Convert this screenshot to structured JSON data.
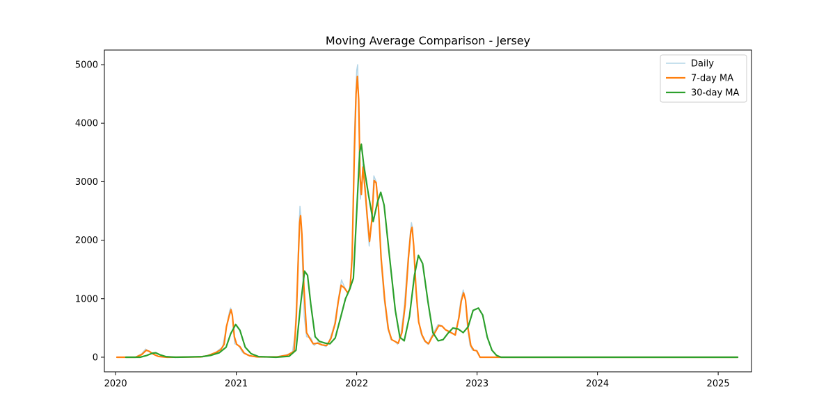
{
  "chart_data": {
    "type": "line",
    "title": "Moving Average Comparison - Jersey",
    "xlabel": "",
    "ylabel": "",
    "x_range": [
      "2019-11-28",
      "2025-04-12"
    ],
    "ylim": [
      -250,
      5250
    ],
    "x_ticks": [
      {
        "date": "2020-01-01",
        "label": "2020"
      },
      {
        "date": "2021-01-01",
        "label": "2021"
      },
      {
        "date": "2022-01-01",
        "label": "2022"
      },
      {
        "date": "2023-01-01",
        "label": "2023"
      },
      {
        "date": "2024-01-01",
        "label": "2024"
      },
      {
        "date": "2025-01-01",
        "label": "2025"
      }
    ],
    "y_ticks": [
      {
        "value": 0,
        "label": "0"
      },
      {
        "value": 1000,
        "label": "1000"
      },
      {
        "value": 2000,
        "label": "2000"
      },
      {
        "value": 3000,
        "label": "3000"
      },
      {
        "value": 4000,
        "label": "4000"
      },
      {
        "value": 5000,
        "label": "5000"
      }
    ],
    "grid": false,
    "legend": "upper-right",
    "series": [
      {
        "name": "Daily",
        "color": "#a6cee3",
        "points": [
          [
            "2020-01-05",
            0
          ],
          [
            "2020-03-01",
            0
          ],
          [
            "2020-03-20",
            60
          ],
          [
            "2020-04-01",
            140
          ],
          [
            "2020-04-08",
            110
          ],
          [
            "2020-04-22",
            60
          ],
          [
            "2020-05-08",
            15
          ],
          [
            "2020-06-01",
            0
          ],
          [
            "2020-09-15",
            5
          ],
          [
            "2020-10-05",
            30
          ],
          [
            "2020-10-20",
            60
          ],
          [
            "2020-11-01",
            90
          ],
          [
            "2020-11-12",
            140
          ],
          [
            "2020-11-20",
            160
          ],
          [
            "2020-11-28",
            400
          ],
          [
            "2020-12-05",
            600
          ],
          [
            "2020-12-12",
            800
          ],
          [
            "2020-12-15",
            840
          ],
          [
            "2020-12-20",
            720
          ],
          [
            "2020-12-27",
            230
          ],
          [
            "2021-01-08",
            200
          ],
          [
            "2021-01-20",
            80
          ],
          [
            "2021-02-05",
            30
          ],
          [
            "2021-03-01",
            5
          ],
          [
            "2021-05-01",
            5
          ],
          [
            "2021-06-01",
            40
          ],
          [
            "2021-06-20",
            80
          ],
          [
            "2021-06-28",
            400
          ],
          [
            "2021-07-05",
            1300
          ],
          [
            "2021-07-10",
            2200
          ],
          [
            "2021-07-13",
            2580
          ],
          [
            "2021-07-16",
            2380
          ],
          [
            "2021-07-20",
            1700
          ],
          [
            "2021-07-26",
            700
          ],
          [
            "2021-08-02",
            350
          ],
          [
            "2021-08-15",
            330
          ],
          [
            "2021-08-25",
            200
          ],
          [
            "2021-09-05",
            260
          ],
          [
            "2021-09-15",
            220
          ],
          [
            "2021-09-30",
            180
          ],
          [
            "2021-10-10",
            280
          ],
          [
            "2021-10-25",
            550
          ],
          [
            "2021-11-01",
            800
          ],
          [
            "2021-11-08",
            1050
          ],
          [
            "2021-11-16",
            1320
          ],
          [
            "2021-11-25",
            1200
          ],
          [
            "2021-12-05",
            1080
          ],
          [
            "2021-12-12",
            1200
          ],
          [
            "2021-12-18",
            1800
          ],
          [
            "2021-12-24",
            3600
          ],
          [
            "2021-12-28",
            4300
          ],
          [
            "2022-01-01",
            4900
          ],
          [
            "2022-01-04",
            5000
          ],
          [
            "2022-01-08",
            4100
          ],
          [
            "2022-01-12",
            2700
          ],
          [
            "2022-01-16",
            2900
          ],
          [
            "2022-01-20",
            3300
          ],
          [
            "2022-01-25",
            2900
          ],
          [
            "2022-02-01",
            2400
          ],
          [
            "2022-02-08",
            1900
          ],
          [
            "2022-02-15",
            2300
          ],
          [
            "2022-02-22",
            3100
          ],
          [
            "2022-03-01",
            3000
          ],
          [
            "2022-03-08",
            2600
          ],
          [
            "2022-03-15",
            1700
          ],
          [
            "2022-03-25",
            1000
          ],
          [
            "2022-04-05",
            500
          ],
          [
            "2022-04-15",
            300
          ],
          [
            "2022-04-25",
            280
          ],
          [
            "2022-05-05",
            220
          ],
          [
            "2022-05-15",
            400
          ],
          [
            "2022-05-25",
            850
          ],
          [
            "2022-06-05",
            1650
          ],
          [
            "2022-06-12",
            2100
          ],
          [
            "2022-06-16",
            2300
          ],
          [
            "2022-06-20",
            2180
          ],
          [
            "2022-06-26",
            1500
          ],
          [
            "2022-07-05",
            700
          ],
          [
            "2022-07-15",
            400
          ],
          [
            "2022-07-25",
            280
          ],
          [
            "2022-08-05",
            220
          ],
          [
            "2022-08-15",
            350
          ],
          [
            "2022-08-25",
            450
          ],
          [
            "2022-09-05",
            560
          ],
          [
            "2022-09-15",
            540
          ],
          [
            "2022-09-25",
            480
          ],
          [
            "2022-10-05",
            450
          ],
          [
            "2022-10-15",
            420
          ],
          [
            "2022-10-25",
            380
          ],
          [
            "2022-11-05",
            650
          ],
          [
            "2022-11-12",
            950
          ],
          [
            "2022-11-20",
            1150
          ],
          [
            "2022-11-26",
            1000
          ],
          [
            "2022-12-03",
            500
          ],
          [
            "2022-12-10",
            220
          ],
          [
            "2022-12-18",
            120
          ],
          [
            "2022-12-28",
            120
          ],
          [
            "2023-01-10",
            0
          ],
          [
            "2023-03-01",
            0
          ],
          [
            "2025-03-01",
            0
          ]
        ]
      },
      {
        "name": "7-day MA",
        "color": "#ff7f0e",
        "points": [
          [
            "2020-01-05",
            0
          ],
          [
            "2020-03-01",
            0
          ],
          [
            "2020-03-20",
            45
          ],
          [
            "2020-04-03",
            120
          ],
          [
            "2020-04-12",
            100
          ],
          [
            "2020-04-25",
            50
          ],
          [
            "2020-05-10",
            12
          ],
          [
            "2020-06-05",
            0
          ],
          [
            "2020-09-15",
            5
          ],
          [
            "2020-10-05",
            25
          ],
          [
            "2020-10-20",
            55
          ],
          [
            "2020-11-02",
            85
          ],
          [
            "2020-11-15",
            130
          ],
          [
            "2020-11-25",
            220
          ],
          [
            "2020-12-02",
            520
          ],
          [
            "2020-12-10",
            700
          ],
          [
            "2020-12-16",
            810
          ],
          [
            "2020-12-20",
            720
          ],
          [
            "2020-12-26",
            350
          ],
          [
            "2021-01-02",
            220
          ],
          [
            "2021-01-12",
            180
          ],
          [
            "2021-01-25",
            70
          ],
          [
            "2021-02-10",
            25
          ],
          [
            "2021-03-05",
            5
          ],
          [
            "2021-05-05",
            5
          ],
          [
            "2021-06-05",
            35
          ],
          [
            "2021-06-25",
            100
          ],
          [
            "2021-07-02",
            700
          ],
          [
            "2021-07-08",
            1700
          ],
          [
            "2021-07-12",
            2300
          ],
          [
            "2021-07-15",
            2420
          ],
          [
            "2021-07-19",
            2100
          ],
          [
            "2021-07-25",
            1200
          ],
          [
            "2021-08-02",
            420
          ],
          [
            "2021-08-12",
            320
          ],
          [
            "2021-08-22",
            230
          ],
          [
            "2021-09-05",
            240
          ],
          [
            "2021-09-18",
            210
          ],
          [
            "2021-10-02",
            200
          ],
          [
            "2021-10-15",
            320
          ],
          [
            "2021-10-28",
            580
          ],
          [
            "2021-11-06",
            950
          ],
          [
            "2021-11-15",
            1230
          ],
          [
            "2021-11-25",
            1180
          ],
          [
            "2021-12-05",
            1100
          ],
          [
            "2021-12-12",
            1180
          ],
          [
            "2021-12-18",
            1700
          ],
          [
            "2021-12-25",
            3500
          ],
          [
            "2021-12-30",
            4500
          ],
          [
            "2022-01-03",
            4800
          ],
          [
            "2022-01-07",
            4400
          ],
          [
            "2022-01-11",
            3100
          ],
          [
            "2022-01-15",
            2780
          ],
          [
            "2022-01-20",
            3250
          ],
          [
            "2022-01-26",
            2900
          ],
          [
            "2022-02-02",
            2400
          ],
          [
            "2022-02-09",
            1980
          ],
          [
            "2022-02-16",
            2350
          ],
          [
            "2022-02-23",
            3020
          ],
          [
            "2022-03-01",
            2980
          ],
          [
            "2022-03-08",
            2550
          ],
          [
            "2022-03-16",
            1700
          ],
          [
            "2022-03-27",
            980
          ],
          [
            "2022-04-07",
            480
          ],
          [
            "2022-04-17",
            300
          ],
          [
            "2022-04-27",
            270
          ],
          [
            "2022-05-07",
            240
          ],
          [
            "2022-05-18",
            420
          ],
          [
            "2022-05-28",
            900
          ],
          [
            "2022-06-07",
            1700
          ],
          [
            "2022-06-14",
            2150
          ],
          [
            "2022-06-18",
            2220
          ],
          [
            "2022-06-23",
            1900
          ],
          [
            "2022-06-30",
            1150
          ],
          [
            "2022-07-08",
            600
          ],
          [
            "2022-07-18",
            380
          ],
          [
            "2022-07-28",
            270
          ],
          [
            "2022-08-07",
            230
          ],
          [
            "2022-08-17",
            340
          ],
          [
            "2022-08-27",
            430
          ],
          [
            "2022-09-07",
            540
          ],
          [
            "2022-09-17",
            530
          ],
          [
            "2022-09-27",
            470
          ],
          [
            "2022-10-07",
            440
          ],
          [
            "2022-10-17",
            410
          ],
          [
            "2022-10-27",
            380
          ],
          [
            "2022-11-07",
            680
          ],
          [
            "2022-11-14",
            960
          ],
          [
            "2022-11-21",
            1100
          ],
          [
            "2022-11-27",
            980
          ],
          [
            "2022-12-05",
            480
          ],
          [
            "2022-12-13",
            200
          ],
          [
            "2022-12-22",
            120
          ],
          [
            "2022-12-31",
            110
          ],
          [
            "2023-01-10",
            0
          ],
          [
            "2023-03-01",
            0
          ],
          [
            "2025-03-01",
            0
          ]
        ]
      },
      {
        "name": "30-day MA",
        "color": "#2ca02c",
        "points": [
          [
            "2020-02-01",
            0
          ],
          [
            "2020-03-15",
            0
          ],
          [
            "2020-04-05",
            30
          ],
          [
            "2020-04-22",
            70
          ],
          [
            "2020-05-02",
            75
          ],
          [
            "2020-05-15",
            40
          ],
          [
            "2020-06-01",
            10
          ],
          [
            "2020-07-01",
            0
          ],
          [
            "2020-09-20",
            10
          ],
          [
            "2020-10-15",
            30
          ],
          [
            "2020-11-10",
            75
          ],
          [
            "2020-12-01",
            170
          ],
          [
            "2020-12-15",
            400
          ],
          [
            "2020-12-30",
            560
          ],
          [
            "2021-01-12",
            460
          ],
          [
            "2021-01-28",
            170
          ],
          [
            "2021-02-15",
            60
          ],
          [
            "2021-03-10",
            10
          ],
          [
            "2021-05-01",
            0
          ],
          [
            "2021-06-10",
            15
          ],
          [
            "2021-07-01",
            120
          ],
          [
            "2021-07-15",
            900
          ],
          [
            "2021-07-27",
            1470
          ],
          [
            "2021-08-05",
            1400
          ],
          [
            "2021-08-15",
            900
          ],
          [
            "2021-08-28",
            350
          ],
          [
            "2021-09-10",
            270
          ],
          [
            "2021-09-28",
            240
          ],
          [
            "2021-10-12",
            230
          ],
          [
            "2021-10-28",
            330
          ],
          [
            "2021-11-12",
            650
          ],
          [
            "2021-11-28",
            1000
          ],
          [
            "2021-12-10",
            1150
          ],
          [
            "2021-12-22",
            1350
          ],
          [
            "2022-01-02",
            2600
          ],
          [
            "2022-01-10",
            3500
          ],
          [
            "2022-01-15",
            3640
          ],
          [
            "2022-01-22",
            3300
          ],
          [
            "2022-02-05",
            2800
          ],
          [
            "2022-02-20",
            2320
          ],
          [
            "2022-03-05",
            2650
          ],
          [
            "2022-03-15",
            2820
          ],
          [
            "2022-03-25",
            2600
          ],
          [
            "2022-04-10",
            1750
          ],
          [
            "2022-04-28",
            800
          ],
          [
            "2022-05-12",
            340
          ],
          [
            "2022-05-25",
            280
          ],
          [
            "2022-06-10",
            700
          ],
          [
            "2022-06-25",
            1400
          ],
          [
            "2022-07-07",
            1740
          ],
          [
            "2022-07-20",
            1600
          ],
          [
            "2022-08-05",
            950
          ],
          [
            "2022-08-20",
            420
          ],
          [
            "2022-09-05",
            280
          ],
          [
            "2022-09-20",
            300
          ],
          [
            "2022-10-05",
            410
          ],
          [
            "2022-10-20",
            500
          ],
          [
            "2022-11-05",
            480
          ],
          [
            "2022-11-20",
            420
          ],
          [
            "2022-12-05",
            520
          ],
          [
            "2022-12-20",
            800
          ],
          [
            "2023-01-05",
            840
          ],
          [
            "2023-01-18",
            720
          ],
          [
            "2023-02-01",
            340
          ],
          [
            "2023-02-15",
            120
          ],
          [
            "2023-03-01",
            30
          ],
          [
            "2023-03-15",
            0
          ],
          [
            "2025-03-01",
            0
          ]
        ]
      }
    ]
  }
}
